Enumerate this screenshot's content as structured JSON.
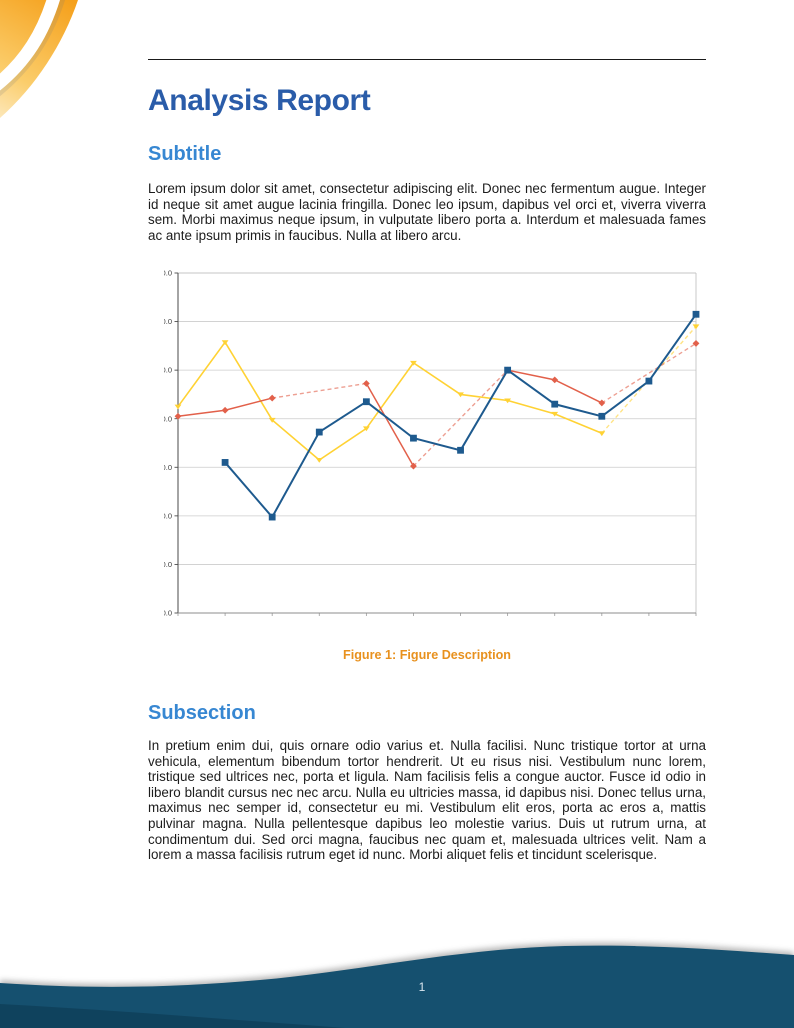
{
  "document": {
    "title": "Analysis Report",
    "subtitle_heading": "Subtitle",
    "intro_paragraph": "Lorem ipsum dolor sit amet, consectetur adipiscing elit.  Donec nec fermentum augue.  Integer id neque sit amet augue lacinia fringilla.  Donec leo ipsum, dapibus vel orci et, viverra viverra sem.  Morbi maximus neque ipsum, in vulputate libero porta a.  Interdum et malesuada fames ac ante ipsum primis in faucibus. Nulla at libero arcu.",
    "figure_caption": "Figure 1: Figure Description",
    "subsection_heading": "Subsection",
    "subsection_paragraph": "In pretium enim dui, quis ornare odio varius et.  Nulla facilisi.  Nunc tristique tortor at urna vehicula, elementum bibendum tortor hendrerit.  Ut eu risus nisi.  Vestibulum nunc lorem, tristique sed ultrices nec, porta et ligula.  Nam facilisis felis a congue auctor.  Fusce id odio in libero blandit cursus nec nec arcu.  Nulla eu ultricies massa, id dapibus nisi.  Donec tellus urna, maximus nec semper id, consectetur eu mi.  Vestibulum elit eros, porta ac eros a, mattis pulvinar magna.  Nulla pellentesque dapibus leo molestie varius.  Duis ut rutrum urna, at condimentum dui.  Sed orci magna, faucibus nec quam et, malesuada ultrices velit.  Nam a lorem a massa facilisis rutrum eget id nunc.  Morbi aliquet felis et tincidunt scelerisque.",
    "page_number": "1"
  },
  "colors": {
    "title_blue": "#2A5CA9",
    "heading_blue": "#3787D2",
    "caption_orange": "#E8911E",
    "footer_blue": "#15506F",
    "accent_orange": "#F5A01B",
    "accent_orange_light": "#FBCD6B",
    "series_blue": "#1E5A8E",
    "series_red": "#E2604A",
    "series_yellow": "#FFD234"
  },
  "chart_data": {
    "type": "line",
    "x": [
      1,
      2,
      3,
      4,
      5,
      6,
      7,
      8,
      9,
      10,
      11,
      12
    ],
    "xtick_labels": [],
    "series": [
      {
        "name": "series-blue",
        "color": "#1E5A8E",
        "marker": "square",
        "line_width": 2,
        "values": [
          null,
          62,
          39.5,
          74.5,
          87,
          72,
          67,
          100,
          86,
          81,
          95.5,
          123
        ]
      },
      {
        "name": "series-red",
        "color": "#E2604A",
        "marker": "diamond",
        "line_width": 1.5,
        "values": [
          81,
          83.5,
          88.5,
          null,
          94.5,
          60.5,
          null,
          100,
          96,
          86.5,
          null,
          111
        ]
      },
      {
        "name": "series-yellow",
        "color": "#FFD234",
        "marker": "triangle-down",
        "line_width": 1.6,
        "values": [
          85,
          111.5,
          79.5,
          63,
          76,
          103,
          90,
          87.5,
          82,
          74,
          null,
          118
        ]
      }
    ],
    "title": "",
    "xlabel": "",
    "ylabel": "",
    "ylim": [
      0,
      140
    ],
    "ytick_step": 20,
    "ytick_labels": [
      "0.0",
      "20.0",
      "40.0",
      "60.0",
      "80.0",
      "100.0",
      "120.0",
      "140.0"
    ],
    "grid": "horizontal",
    "legend": "none",
    "missing_data_style": "dashed straight interpolation across gaps"
  }
}
